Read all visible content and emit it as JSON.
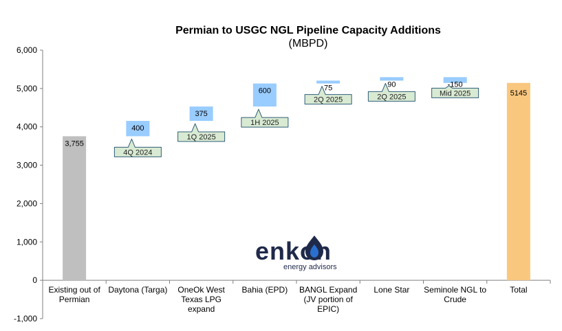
{
  "chart_data": {
    "type": "bar",
    "subtype": "waterfall",
    "title": "Permian to USGC NGL Pipeline Capacity Additions",
    "subtitle": "(MBPD)",
    "ylim": [
      -1000,
      6000
    ],
    "yticks": [
      -1000,
      0,
      1000,
      2000,
      3000,
      4000,
      5000,
      6000
    ],
    "ytick_labels": [
      "-1,000",
      "0",
      "1,000",
      "2,000",
      "3,000",
      "4,000",
      "5,000",
      "6,000"
    ],
    "grid": false,
    "categories": [
      [
        "Existing out of",
        "Permian"
      ],
      [
        "Daytona (Targa)"
      ],
      [
        "OneOk West",
        "Texas LPG",
        "expand"
      ],
      [
        "Bahia (EPD)"
      ],
      [
        "BANGL Expand",
        "(JV portion of",
        "EPIC)"
      ],
      [
        "Lone Star"
      ],
      [
        "Seminole NGL to",
        "Crude"
      ],
      [
        "Total"
      ]
    ],
    "base": 3755,
    "base_label": "3,755",
    "increments": [
      400,
      375,
      600,
      75,
      90,
      -150
    ],
    "increment_labels": [
      "400",
      "375",
      "600",
      "75",
      "90",
      "-150"
    ],
    "timing": [
      "4Q 2024",
      "1Q 2025",
      "1H 2025",
      "2Q 2025",
      "2Q 2025",
      "Mid 2025"
    ],
    "total": 5145,
    "total_label": "5145",
    "colors": {
      "base": "#bfbfbf",
      "step": "#99ccff",
      "total": "#fac77f",
      "callout_fill": "#d9ead3",
      "callout_stroke": "#2e5c77",
      "axis": "#7f7f7f"
    }
  },
  "logo": {
    "text": "enkon",
    "tagline": "energy advisors",
    "color": "#1f2a4a",
    "accent": "#2a6fd0"
  }
}
